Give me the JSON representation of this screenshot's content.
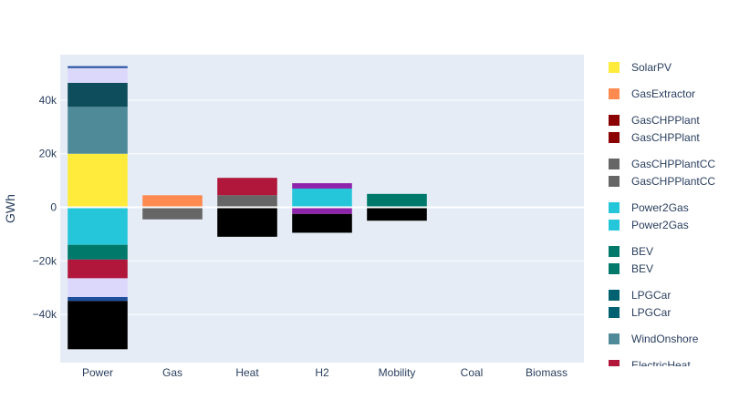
{
  "chart_data": {
    "type": "bar",
    "barmode": "relative",
    "ylabel": "GWh",
    "ylim": [
      -58000,
      57000
    ],
    "yticks": [
      {
        "value": 40000,
        "label": "40k"
      },
      {
        "value": 20000,
        "label": "20k"
      },
      {
        "value": 0,
        "label": "0"
      },
      {
        "value": -20000,
        "label": "−20k"
      },
      {
        "value": -40000,
        "label": "−40k"
      }
    ],
    "categories": [
      "Power",
      "Gas",
      "Heat",
      "H2",
      "Mobility",
      "Coal",
      "Biomass"
    ],
    "series": [
      {
        "name": "SolarPV",
        "color": "#ffeb3b",
        "values": [
          20000,
          0,
          0,
          0,
          0,
          0,
          0
        ]
      },
      {
        "name": "GasExtractor",
        "color": "#ff8a50",
        "values": [
          0,
          4500,
          0,
          0,
          0,
          0,
          0
        ]
      },
      {
        "name": "GasCHPPlant",
        "color": "#8b0000",
        "values": [
          0,
          0,
          0,
          0,
          0,
          0,
          0
        ]
      },
      {
        "name": "GasCHPPlant",
        "color": "#8b0000",
        "values": [
          0,
          0,
          0,
          0,
          0,
          0,
          0
        ]
      },
      {
        "name": "GasCHPPlantCC",
        "color": "#666666",
        "values": [
          0,
          0,
          4500,
          0,
          0,
          0,
          0
        ]
      },
      {
        "name": "GasCHPPlantCC",
        "color": "#666666",
        "values": [
          0,
          -4500,
          0,
          0,
          0,
          0,
          0
        ]
      },
      {
        "name": "Power2Gas",
        "color": "#26c6da",
        "values": [
          0,
          0,
          0,
          7000,
          0,
          0,
          0
        ]
      },
      {
        "name": "Power2Gas",
        "color": "#26c6da",
        "values": [
          -14000,
          0,
          0,
          0,
          0,
          0,
          0
        ]
      },
      {
        "name": "BEV",
        "color": "#00796b",
        "values": [
          0,
          0,
          0,
          0,
          5000,
          0,
          0
        ]
      },
      {
        "name": "BEV",
        "color": "#00796b",
        "values": [
          -5500,
          0,
          0,
          0,
          0,
          0,
          0
        ]
      },
      {
        "name": "LPGCar",
        "color": "#006270",
        "values": [
          0,
          0,
          0,
          0,
          0,
          0,
          0
        ]
      },
      {
        "name": "LPGCar",
        "color": "#006270",
        "values": [
          0,
          0,
          0,
          0,
          0,
          0,
          0
        ]
      },
      {
        "name": "WindOnshore",
        "color": "#4f8a98",
        "values": [
          17500,
          0,
          0,
          0,
          0,
          0,
          0
        ]
      },
      {
        "name": "",
        "color": "#b0173b",
        "values": [
          0,
          0,
          6500,
          0,
          0,
          0,
          0
        ]
      },
      {
        "name": "",
        "color": "#b0173b",
        "values": [
          -7000,
          0,
          0,
          0,
          0,
          0,
          0
        ]
      },
      {
        "name": "",
        "color": "#8e24aa",
        "values": [
          0,
          0,
          0,
          2000,
          0,
          0,
          0
        ]
      },
      {
        "name": "",
        "color": "#8e24aa",
        "values": [
          0,
          0,
          0,
          -2500,
          0,
          0,
          0
        ]
      },
      {
        "name": "",
        "color": "#0d4d5c",
        "values": [
          9000,
          0,
          0,
          0,
          0,
          0,
          0
        ]
      },
      {
        "name": "",
        "color": "#dcd8fc",
        "values": [
          5500,
          0,
          0,
          0,
          0,
          0,
          0
        ]
      },
      {
        "name": "",
        "color": "#dcd8fc",
        "values": [
          -7000,
          0,
          0,
          0,
          0,
          0,
          0
        ]
      },
      {
        "name": "",
        "color": "#1f4e9c",
        "values": [
          700,
          0,
          0,
          0,
          0,
          0,
          0
        ]
      },
      {
        "name": "",
        "color": "#1f4e9c",
        "values": [
          -1500,
          0,
          0,
          0,
          0,
          0,
          0
        ]
      },
      {
        "name": "",
        "color": "#000000",
        "values": [
          -18000,
          0,
          -11000,
          -7000,
          -5000,
          0,
          0
        ]
      },
      {
        "name": "",
        "color": "#f2f2f2",
        "values": [
          0,
          0,
          0,
          0,
          0,
          0,
          200
        ]
      }
    ],
    "legend": {
      "position": "right",
      "items": [
        {
          "name": "SolarPV",
          "color": "#ffeb3b"
        },
        {
          "name": "GasExtractor",
          "color": "#ff8a50"
        },
        {
          "name": "GasCHPPlant",
          "color": "#8b0000"
        },
        {
          "name": "GasCHPPlant",
          "color": "#8b0000"
        },
        {
          "name": "GasCHPPlantCC",
          "color": "#666666"
        },
        {
          "name": "GasCHPPlantCC",
          "color": "#666666"
        },
        {
          "name": "Power2Gas",
          "color": "#26c6da"
        },
        {
          "name": "Power2Gas",
          "color": "#26c6da"
        },
        {
          "name": "BEV",
          "color": "#00796b"
        },
        {
          "name": "BEV",
          "color": "#00796b"
        },
        {
          "name": "LPGCar",
          "color": "#006270"
        },
        {
          "name": "LPGCar",
          "color": "#006270"
        },
        {
          "name": "WindOnshore",
          "color": "#4f8a98"
        },
        {
          "name": "ElectricHeat",
          "color": "#b0173b"
        }
      ]
    },
    "colors": {
      "plot_bg": "#e5ecf6",
      "grid": "#ffffff",
      "text": "#2a3f5f"
    }
  }
}
